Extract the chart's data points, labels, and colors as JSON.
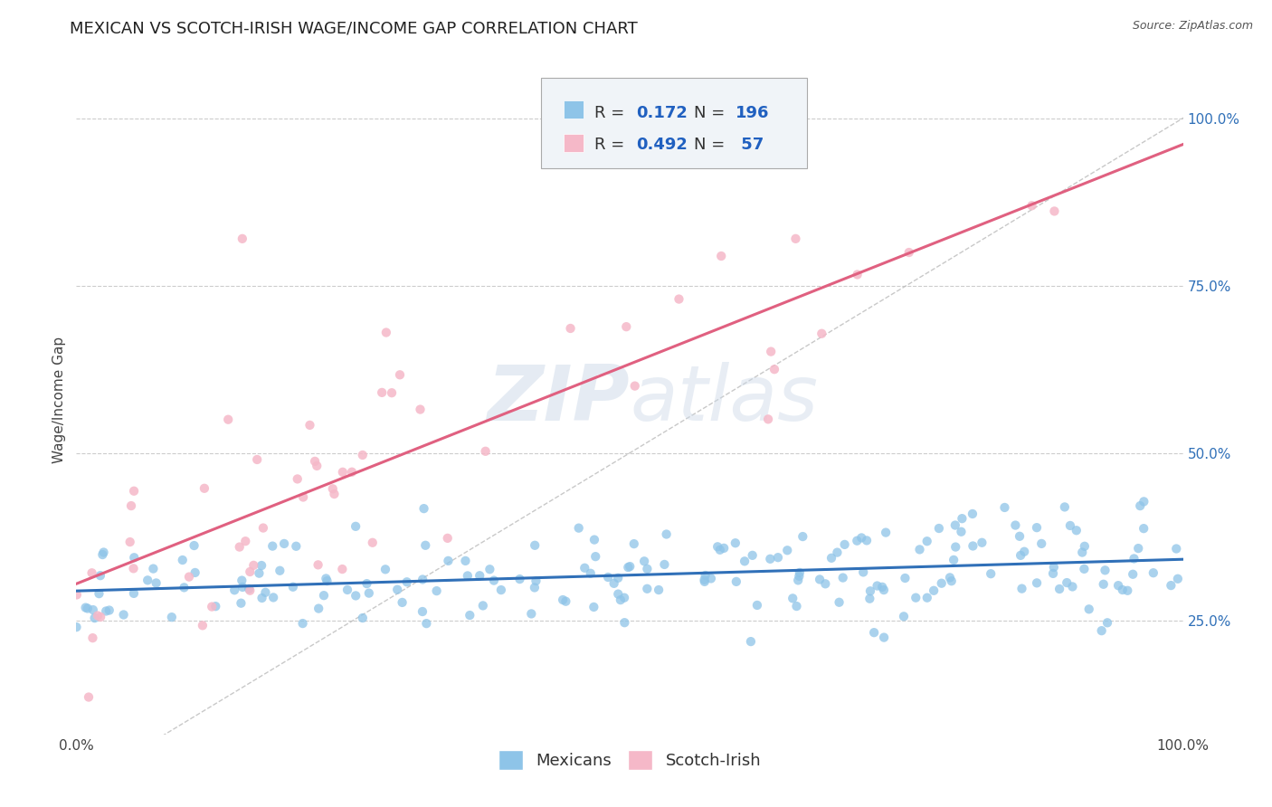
{
  "title": "MEXICAN VS SCOTCH-IRISH WAGE/INCOME GAP CORRELATION CHART",
  "source": "Source: ZipAtlas.com",
  "ylabel": "Wage/Income Gap",
  "watermark_zip": "ZIP",
  "watermark_atlas": "atlas",
  "blue_R": 0.172,
  "blue_N": 196,
  "pink_R": 0.492,
  "pink_N": 57,
  "blue_color": "#8ec4e8",
  "pink_color": "#f5b8c8",
  "blue_line_color": "#3070b8",
  "pink_line_color": "#e06080",
  "diagonal_color": "#bbbbbb",
  "y_ticks": [
    0.25,
    0.5,
    0.75,
    1.0
  ],
  "y_tick_labels": [
    "25.0%",
    "50.0%",
    "75.0%",
    "100.0%"
  ],
  "x_tick_labels": [
    "0.0%",
    "100.0%"
  ],
  "xlim": [
    0.0,
    1.0
  ],
  "ylim": [
    0.08,
    1.08
  ],
  "background_color": "#ffffff",
  "grid_color": "#cccccc",
  "title_fontsize": 13,
  "legend_fontsize": 13,
  "axis_label_fontsize": 11,
  "tick_fontsize": 11,
  "source_fontsize": 9,
  "legend_text_color": "#2060c0",
  "legend_label_color": "#333333"
}
